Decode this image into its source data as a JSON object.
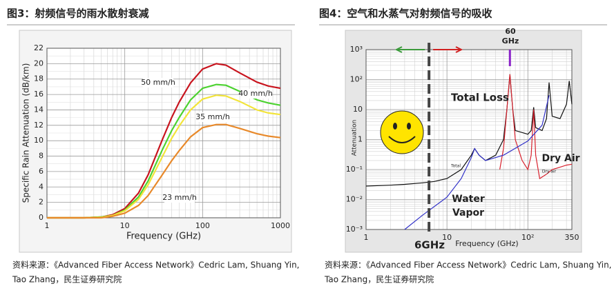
{
  "chart_data": [
    {
      "type": "line",
      "title": "图3：射频信号的雨水散射衰减",
      "x_label": "Frequency (GHz)",
      "y_label": "Specific Rain Attenuation (dB/km)",
      "x_log": true,
      "xlim": [
        1,
        1000
      ],
      "xticks": [
        1,
        10,
        100,
        1000
      ],
      "ylim": [
        0,
        22
      ],
      "yticks": [
        0,
        2,
        4,
        6,
        8,
        10,
        12,
        14,
        16,
        18,
        20,
        22
      ],
      "grid": true,
      "x": [
        1,
        2,
        3,
        5,
        7,
        10,
        15,
        20,
        30,
        40,
        50,
        70,
        100,
        150,
        200,
        300,
        500,
        700,
        1000
      ],
      "series": [
        {
          "name": "50 mm/h",
          "color": "#c8141e",
          "values": [
            0,
            0,
            0,
            0.1,
            0.4,
            1.2,
            3.2,
            5.6,
            10,
            13,
            15,
            17.5,
            19.3,
            20,
            19.8,
            18.8,
            17.6,
            17.1,
            16.8
          ]
        },
        {
          "name": "40 mm/h",
          "color": "#4cd230",
          "values": [
            0,
            0,
            0,
            0.1,
            0.3,
            1,
            2.7,
            4.8,
            8.7,
            11.3,
            13,
            15.3,
            16.8,
            17.3,
            17.2,
            16.4,
            15.3,
            14.9,
            14.6
          ]
        },
        {
          "name": "35 mm/h",
          "color": "#f2e43a",
          "values": [
            0,
            0,
            0,
            0.05,
            0.3,
            0.9,
            2.4,
            4.3,
            7.8,
            10.3,
            11.9,
            14,
            15.4,
            15.9,
            15.8,
            15.1,
            14,
            13.6,
            13.4
          ]
        },
        {
          "name": "23 mm/h",
          "color": "#e8892a",
          "values": [
            0,
            0,
            0,
            0,
            0.2,
            0.6,
            1.6,
            2.9,
            5.5,
            7.4,
            8.7,
            10.5,
            11.7,
            12.1,
            12.1,
            11.6,
            10.9,
            10.6,
            10.4
          ]
        }
      ],
      "source": [
        "资料来源：《Advanced Fiber Access Network》Cedric Lam, Shuang Yin,",
        "Tao Zhang，民生证券研究院"
      ]
    },
    {
      "type": "line",
      "title": "图4：空气和水蒸气对射频信号的吸收",
      "x_label": "Frequency (GHz)",
      "y_label": "Attenuation",
      "x_log": true,
      "y_log": true,
      "xlim": [
        1,
        350
      ],
      "xticks": [
        1,
        10,
        {
          "value": 100,
          "label": "10²"
        },
        350
      ],
      "ylim": [
        0.001,
        1000
      ],
      "yticks": [
        {
          "value": 0.001,
          "label": "10⁻³"
        },
        {
          "value": 0.01,
          "label": "10⁻²"
        },
        {
          "value": 0.1,
          "label": "10⁻¹"
        },
        1,
        10,
        {
          "value": 100,
          "label": "10²"
        },
        {
          "value": 1000,
          "label": "10³"
        }
      ],
      "grid": true,
      "series": [
        {
          "name": "Total Loss",
          "color": "#111111",
          "x": [
            1,
            2,
            3,
            5,
            7,
            10,
            15,
            20,
            22,
            25,
            30,
            40,
            50,
            55,
            60,
            65,
            70,
            100,
            110,
            118,
            125,
            150,
            170,
            183,
            200,
            250,
            300,
            325,
            350
          ],
          "values": [
            0.028,
            0.03,
            0.032,
            0.036,
            0.04,
            0.05,
            0.1,
            0.3,
            0.5,
            0.3,
            0.2,
            0.3,
            1,
            10,
            150,
            10,
            2,
            1.5,
            2,
            12,
            2.5,
            2,
            5,
            80,
            6,
            5,
            15,
            90,
            15
          ]
        },
        {
          "name": "Dry Air",
          "color": "#d8202c",
          "x": [
            45,
            50,
            55,
            60,
            65,
            70,
            85,
            100,
            110,
            118,
            125,
            140,
            170,
            200,
            250,
            300,
            350
          ],
          "values": [
            0.1,
            0.5,
            10,
            150,
            10,
            1,
            0.2,
            0.1,
            0.3,
            10,
            0.3,
            0.05,
            0.07,
            0.1,
            0.12,
            0.14,
            0.15
          ]
        },
        {
          "name": "Water Vapor",
          "color": "#3030c8",
          "x": [
            3,
            5,
            10,
            15,
            20,
            22,
            25,
            30,
            50,
            100,
            150,
            183
          ],
          "values": [
            0.001,
            0.003,
            0.012,
            0.05,
            0.25,
            0.5,
            0.3,
            0.2,
            0.3,
            0.9,
            3,
            30
          ]
        }
      ],
      "reference_lines": [
        6,
        60
      ],
      "annotations": [
        "Total Loss",
        "Dry Air",
        "Water",
        "Vapor",
        "60",
        "GHz",
        "6GHz",
        "Total",
        "Dry air"
      ],
      "source": [
        "资料来源：《Advanced Fiber Access Network》Cedric Lam, Shuang Yin,",
        "Tao Zhang，民生证券研究院"
      ]
    }
  ]
}
